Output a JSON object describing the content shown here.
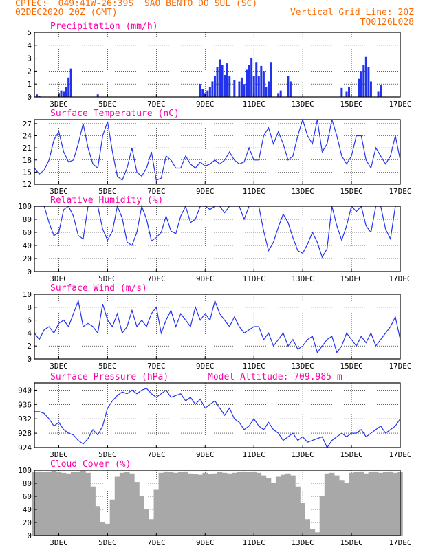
{
  "header": {
    "line1_left": "CPTEC:  049:41W-26:39S  SAO BENTO DO SUL (SC)",
    "line2_left": "02DEC2020 20Z (GMT)",
    "line2_right": "Vertical Grid Line: 20Z",
    "line3_right": "TQ0126L028"
  },
  "colors": {
    "header": "#ff6a00",
    "title": "#ff00aa",
    "line": "#2233ee",
    "bar": "#2233ee",
    "cloud": "#a8a8a8",
    "grid": "#000000"
  },
  "x_axis": {
    "range_days": [
      2.0,
      17.0
    ],
    "tick_labels": [
      "3DEC",
      "5DEC",
      "7DEC",
      "9DEC",
      "11DEC",
      "13DEC",
      "15DEC",
      "17DEC"
    ],
    "tick_days": [
      3,
      5,
      7,
      9,
      11,
      13,
      15,
      17
    ]
  },
  "chart_data": [
    {
      "id": "precipitation",
      "type": "bar",
      "title": "Precipitation (mm/h)",
      "ylim": [
        0,
        5
      ],
      "yticks": [
        0,
        1,
        2,
        3,
        4,
        5
      ],
      "x": [
        2.1,
        2.2,
        3.0,
        3.1,
        3.2,
        3.3,
        3.4,
        3.5,
        4.6,
        8.8,
        8.9,
        9.0,
        9.1,
        9.2,
        9.3,
        9.4,
        9.5,
        9.6,
        9.7,
        9.8,
        9.9,
        10.0,
        10.2,
        10.4,
        10.5,
        10.6,
        10.7,
        10.8,
        10.9,
        11.0,
        11.1,
        11.2,
        11.3,
        11.4,
        11.5,
        11.6,
        11.7,
        12.0,
        12.1,
        12.4,
        12.5,
        14.6,
        14.8,
        14.9,
        15.3,
        15.4,
        15.5,
        15.6,
        15.7,
        15.8,
        16.1,
        16.2
      ],
      "values": [
        0.2,
        0.1,
        0.3,
        0.5,
        0.4,
        0.8,
        1.5,
        2.2,
        0.2,
        1.0,
        0.6,
        0.3,
        0.5,
        0.8,
        1.2,
        1.6,
        2.3,
        2.9,
        2.5,
        1.7,
        2.6,
        1.6,
        1.3,
        1.2,
        1.5,
        1.0,
        2.1,
        2.5,
        3.0,
        1.6,
        2.7,
        1.6,
        2.4,
        2.0,
        0.8,
        1.2,
        2.7,
        0.3,
        0.5,
        1.6,
        1.2,
        0.7,
        0.4,
        0.8,
        1.4,
        2.0,
        2.5,
        3.1,
        2.3,
        1.2,
        0.4,
        0.9
      ]
    },
    {
      "id": "temperature",
      "type": "line",
      "title": "Surface Temperature (nC)",
      "ylim": [
        12,
        28
      ],
      "yticks": [
        12,
        15,
        18,
        21,
        24,
        27
      ],
      "x": [
        2.0,
        2.2,
        2.4,
        2.6,
        2.8,
        3.0,
        3.2,
        3.4,
        3.6,
        3.8,
        4.0,
        4.2,
        4.4,
        4.6,
        4.8,
        5.0,
        5.2,
        5.4,
        5.6,
        5.8,
        6.0,
        6.2,
        6.4,
        6.6,
        6.8,
        7.0,
        7.2,
        7.4,
        7.6,
        7.8,
        8.0,
        8.2,
        8.4,
        8.6,
        8.8,
        9.0,
        9.2,
        9.4,
        9.6,
        9.8,
        10.0,
        10.2,
        10.4,
        10.6,
        10.8,
        11.0,
        11.2,
        11.4,
        11.6,
        11.8,
        12.0,
        12.2,
        12.4,
        12.6,
        12.8,
        13.0,
        13.2,
        13.4,
        13.6,
        13.8,
        14.0,
        14.2,
        14.4,
        14.6,
        14.8,
        15.0,
        15.2,
        15.4,
        15.6,
        15.8,
        16.0,
        16.2,
        16.4,
        16.6,
        16.8,
        17.0
      ],
      "values": [
        16,
        14.5,
        15.5,
        18,
        23,
        25,
        20,
        17.5,
        18,
        22,
        27,
        21,
        17,
        16,
        24,
        27.5,
        20,
        14,
        13,
        16,
        21,
        15,
        14,
        16,
        20,
        13,
        13.5,
        19,
        18,
        16,
        16,
        19,
        17,
        16,
        17.5,
        16.5,
        17,
        18,
        17,
        18,
        20,
        18,
        17,
        17.5,
        21,
        18,
        18,
        24,
        26,
        22,
        25,
        22,
        18,
        19,
        24,
        28,
        24,
        22,
        28,
        20,
        22,
        28,
        24,
        19,
        17,
        19,
        24,
        24,
        18,
        16,
        21,
        19,
        17,
        19,
        24,
        18
      ]
    },
    {
      "id": "humidity",
      "type": "line",
      "title": "Relative Humidity (%)",
      "ylim": [
        0,
        100
      ],
      "yticks": [
        0,
        20,
        40,
        60,
        80,
        100
      ],
      "x": [
        2.0,
        2.2,
        2.4,
        2.6,
        2.8,
        3.0,
        3.2,
        3.4,
        3.6,
        3.8,
        4.0,
        4.2,
        4.4,
        4.6,
        4.8,
        5.0,
        5.2,
        5.4,
        5.6,
        5.8,
        6.0,
        6.2,
        6.4,
        6.6,
        6.8,
        7.0,
        7.2,
        7.4,
        7.6,
        7.8,
        8.0,
        8.2,
        8.4,
        8.6,
        8.8,
        9.0,
        9.2,
        9.4,
        9.6,
        9.8,
        10.0,
        10.2,
        10.4,
        10.6,
        10.8,
        11.0,
        11.2,
        11.4,
        11.6,
        11.8,
        12.0,
        12.2,
        12.4,
        12.6,
        12.8,
        13.0,
        13.2,
        13.4,
        13.6,
        13.8,
        14.0,
        14.2,
        14.4,
        14.6,
        14.8,
        15.0,
        15.2,
        15.4,
        15.6,
        15.8,
        16.0,
        16.2,
        16.4,
        16.6,
        16.8,
        17.0
      ],
      "values": [
        100,
        100,
        100,
        75,
        55,
        60,
        95,
        100,
        85,
        55,
        50,
        100,
        100,
        100,
        65,
        48,
        62,
        100,
        82,
        45,
        40,
        60,
        100,
        80,
        47,
        52,
        60,
        85,
        62,
        58,
        85,
        100,
        75,
        80,
        100,
        100,
        95,
        100,
        100,
        90,
        100,
        100,
        100,
        80,
        100,
        100,
        100,
        62,
        32,
        45,
        68,
        88,
        75,
        52,
        32,
        28,
        42,
        60,
        45,
        22,
        35,
        100,
        70,
        48,
        70,
        100,
        92,
        100,
        70,
        60,
        100,
        100,
        65,
        50,
        100,
        100
      ]
    },
    {
      "id": "wind",
      "type": "line",
      "title": "Surface Wind (m/s)",
      "ylim": [
        0,
        10
      ],
      "yticks": [
        0,
        2,
        4,
        6,
        8,
        10
      ],
      "x": [
        2.0,
        2.2,
        2.4,
        2.6,
        2.8,
        3.0,
        3.2,
        3.4,
        3.6,
        3.8,
        4.0,
        4.2,
        4.4,
        4.6,
        4.8,
        5.0,
        5.2,
        5.4,
        5.6,
        5.8,
        6.0,
        6.2,
        6.4,
        6.6,
        6.8,
        7.0,
        7.2,
        7.4,
        7.6,
        7.8,
        8.0,
        8.2,
        8.4,
        8.6,
        8.8,
        9.0,
        9.2,
        9.4,
        9.6,
        9.8,
        10.0,
        10.2,
        10.4,
        10.6,
        10.8,
        11.0,
        11.2,
        11.4,
        11.6,
        11.8,
        12.0,
        12.2,
        12.4,
        12.6,
        12.8,
        13.0,
        13.2,
        13.4,
        13.6,
        13.8,
        14.0,
        14.2,
        14.4,
        14.6,
        14.8,
        15.0,
        15.2,
        15.4,
        15.6,
        15.8,
        16.0,
        16.2,
        16.4,
        16.6,
        16.8,
        17.0
      ],
      "values": [
        4,
        3,
        4.5,
        5,
        4,
        5.5,
        6,
        5,
        7,
        9,
        5,
        5.5,
        5,
        4,
        8.5,
        6,
        5,
        7,
        4,
        5,
        7.5,
        5,
        6,
        5,
        7,
        8,
        4,
        6,
        7.5,
        5,
        7,
        6,
        5,
        8,
        6,
        7,
        6,
        9,
        7,
        6,
        5,
        6.5,
        5,
        4,
        4.5,
        5,
        5,
        3,
        4,
        2,
        3,
        4,
        2,
        3,
        1.5,
        2,
        3,
        3.5,
        1,
        2,
        3,
        3.5,
        1,
        2,
        4,
        3,
        2,
        3.5,
        2.5,
        4,
        2,
        3,
        4,
        5,
        6.5,
        3
      ]
    },
    {
      "id": "pressure",
      "type": "line",
      "title": "Surface Pressure (hPa)",
      "annotation": "Model Altitude: 709.985 m",
      "ylim": [
        924,
        942
      ],
      "yticks": [
        924,
        928,
        932,
        936,
        940
      ],
      "x": [
        2.0,
        2.2,
        2.4,
        2.6,
        2.8,
        3.0,
        3.2,
        3.4,
        3.6,
        3.8,
        4.0,
        4.2,
        4.4,
        4.6,
        4.8,
        5.0,
        5.2,
        5.4,
        5.6,
        5.8,
        6.0,
        6.2,
        6.4,
        6.6,
        6.8,
        7.0,
        7.2,
        7.4,
        7.6,
        7.8,
        8.0,
        8.2,
        8.4,
        8.6,
        8.8,
        9.0,
        9.2,
        9.4,
        9.6,
        9.8,
        10.0,
        10.2,
        10.4,
        10.6,
        10.8,
        11.0,
        11.2,
        11.4,
        11.6,
        11.8,
        12.0,
        12.2,
        12.4,
        12.6,
        12.8,
        13.0,
        13.2,
        13.4,
        13.6,
        13.8,
        14.0,
        14.2,
        14.4,
        14.6,
        14.8,
        15.0,
        15.2,
        15.4,
        15.6,
        15.8,
        16.0,
        16.2,
        16.4,
        16.6,
        16.8,
        17.0
      ],
      "values": [
        934,
        934,
        933.5,
        932,
        930,
        931,
        929,
        928,
        927.5,
        926,
        925,
        926.5,
        929,
        927.5,
        930,
        935,
        937,
        938.5,
        939.5,
        939,
        940,
        939,
        940,
        940.5,
        939,
        938,
        939,
        940,
        938,
        938.5,
        939,
        937,
        938,
        936,
        937.5,
        935,
        936,
        937,
        935,
        933,
        935,
        932,
        931,
        929,
        930,
        932,
        930,
        929,
        931,
        929,
        928,
        926,
        927,
        928,
        926,
        927,
        925.5,
        926,
        926.5,
        927,
        924,
        926,
        927,
        928,
        927,
        928,
        928,
        929,
        927,
        928,
        929,
        930,
        928,
        929,
        930,
        932
      ]
    },
    {
      "id": "cloud",
      "type": "bar",
      "title": "Cloud Cover (%)",
      "ylim": [
        0,
        100
      ],
      "yticks": [
        0,
        20,
        40,
        60,
        80,
        100
      ],
      "x": [
        2.0,
        2.2,
        2.4,
        2.6,
        2.8,
        3.0,
        3.2,
        3.4,
        3.6,
        3.8,
        4.0,
        4.2,
        4.4,
        4.6,
        4.8,
        5.0,
        5.2,
        5.4,
        5.6,
        5.8,
        6.0,
        6.2,
        6.4,
        6.6,
        6.8,
        7.0,
        7.2,
        7.4,
        7.6,
        7.8,
        8.0,
        8.2,
        8.4,
        8.6,
        8.8,
        9.0,
        9.2,
        9.4,
        9.6,
        9.8,
        10.0,
        10.2,
        10.4,
        10.6,
        10.8,
        11.0,
        11.2,
        11.4,
        11.6,
        11.8,
        12.0,
        12.2,
        12.4,
        12.6,
        12.8,
        13.0,
        13.2,
        13.4,
        13.6,
        13.8,
        14.0,
        14.2,
        14.4,
        14.6,
        14.8,
        15.0,
        15.2,
        15.4,
        15.6,
        15.8,
        16.0,
        16.2,
        16.4,
        16.6,
        16.8,
        17.0
      ],
      "values": [
        98,
        98,
        97,
        98,
        99,
        98,
        96,
        95,
        97,
        98,
        99,
        96,
        75,
        45,
        20,
        18,
        55,
        90,
        96,
        97,
        95,
        82,
        60,
        40,
        25,
        70,
        96,
        98,
        97,
        96,
        97,
        98,
        95,
        94,
        93,
        96,
        94,
        95,
        97,
        96,
        95,
        96,
        97,
        98,
        97,
        98,
        96,
        92,
        88,
        80,
        90,
        93,
        95,
        92,
        75,
        50,
        25,
        10,
        5,
        60,
        95,
        96,
        92,
        85,
        80,
        96,
        97,
        98,
        95,
        97,
        98,
        96,
        97,
        98,
        96,
        97
      ]
    }
  ]
}
